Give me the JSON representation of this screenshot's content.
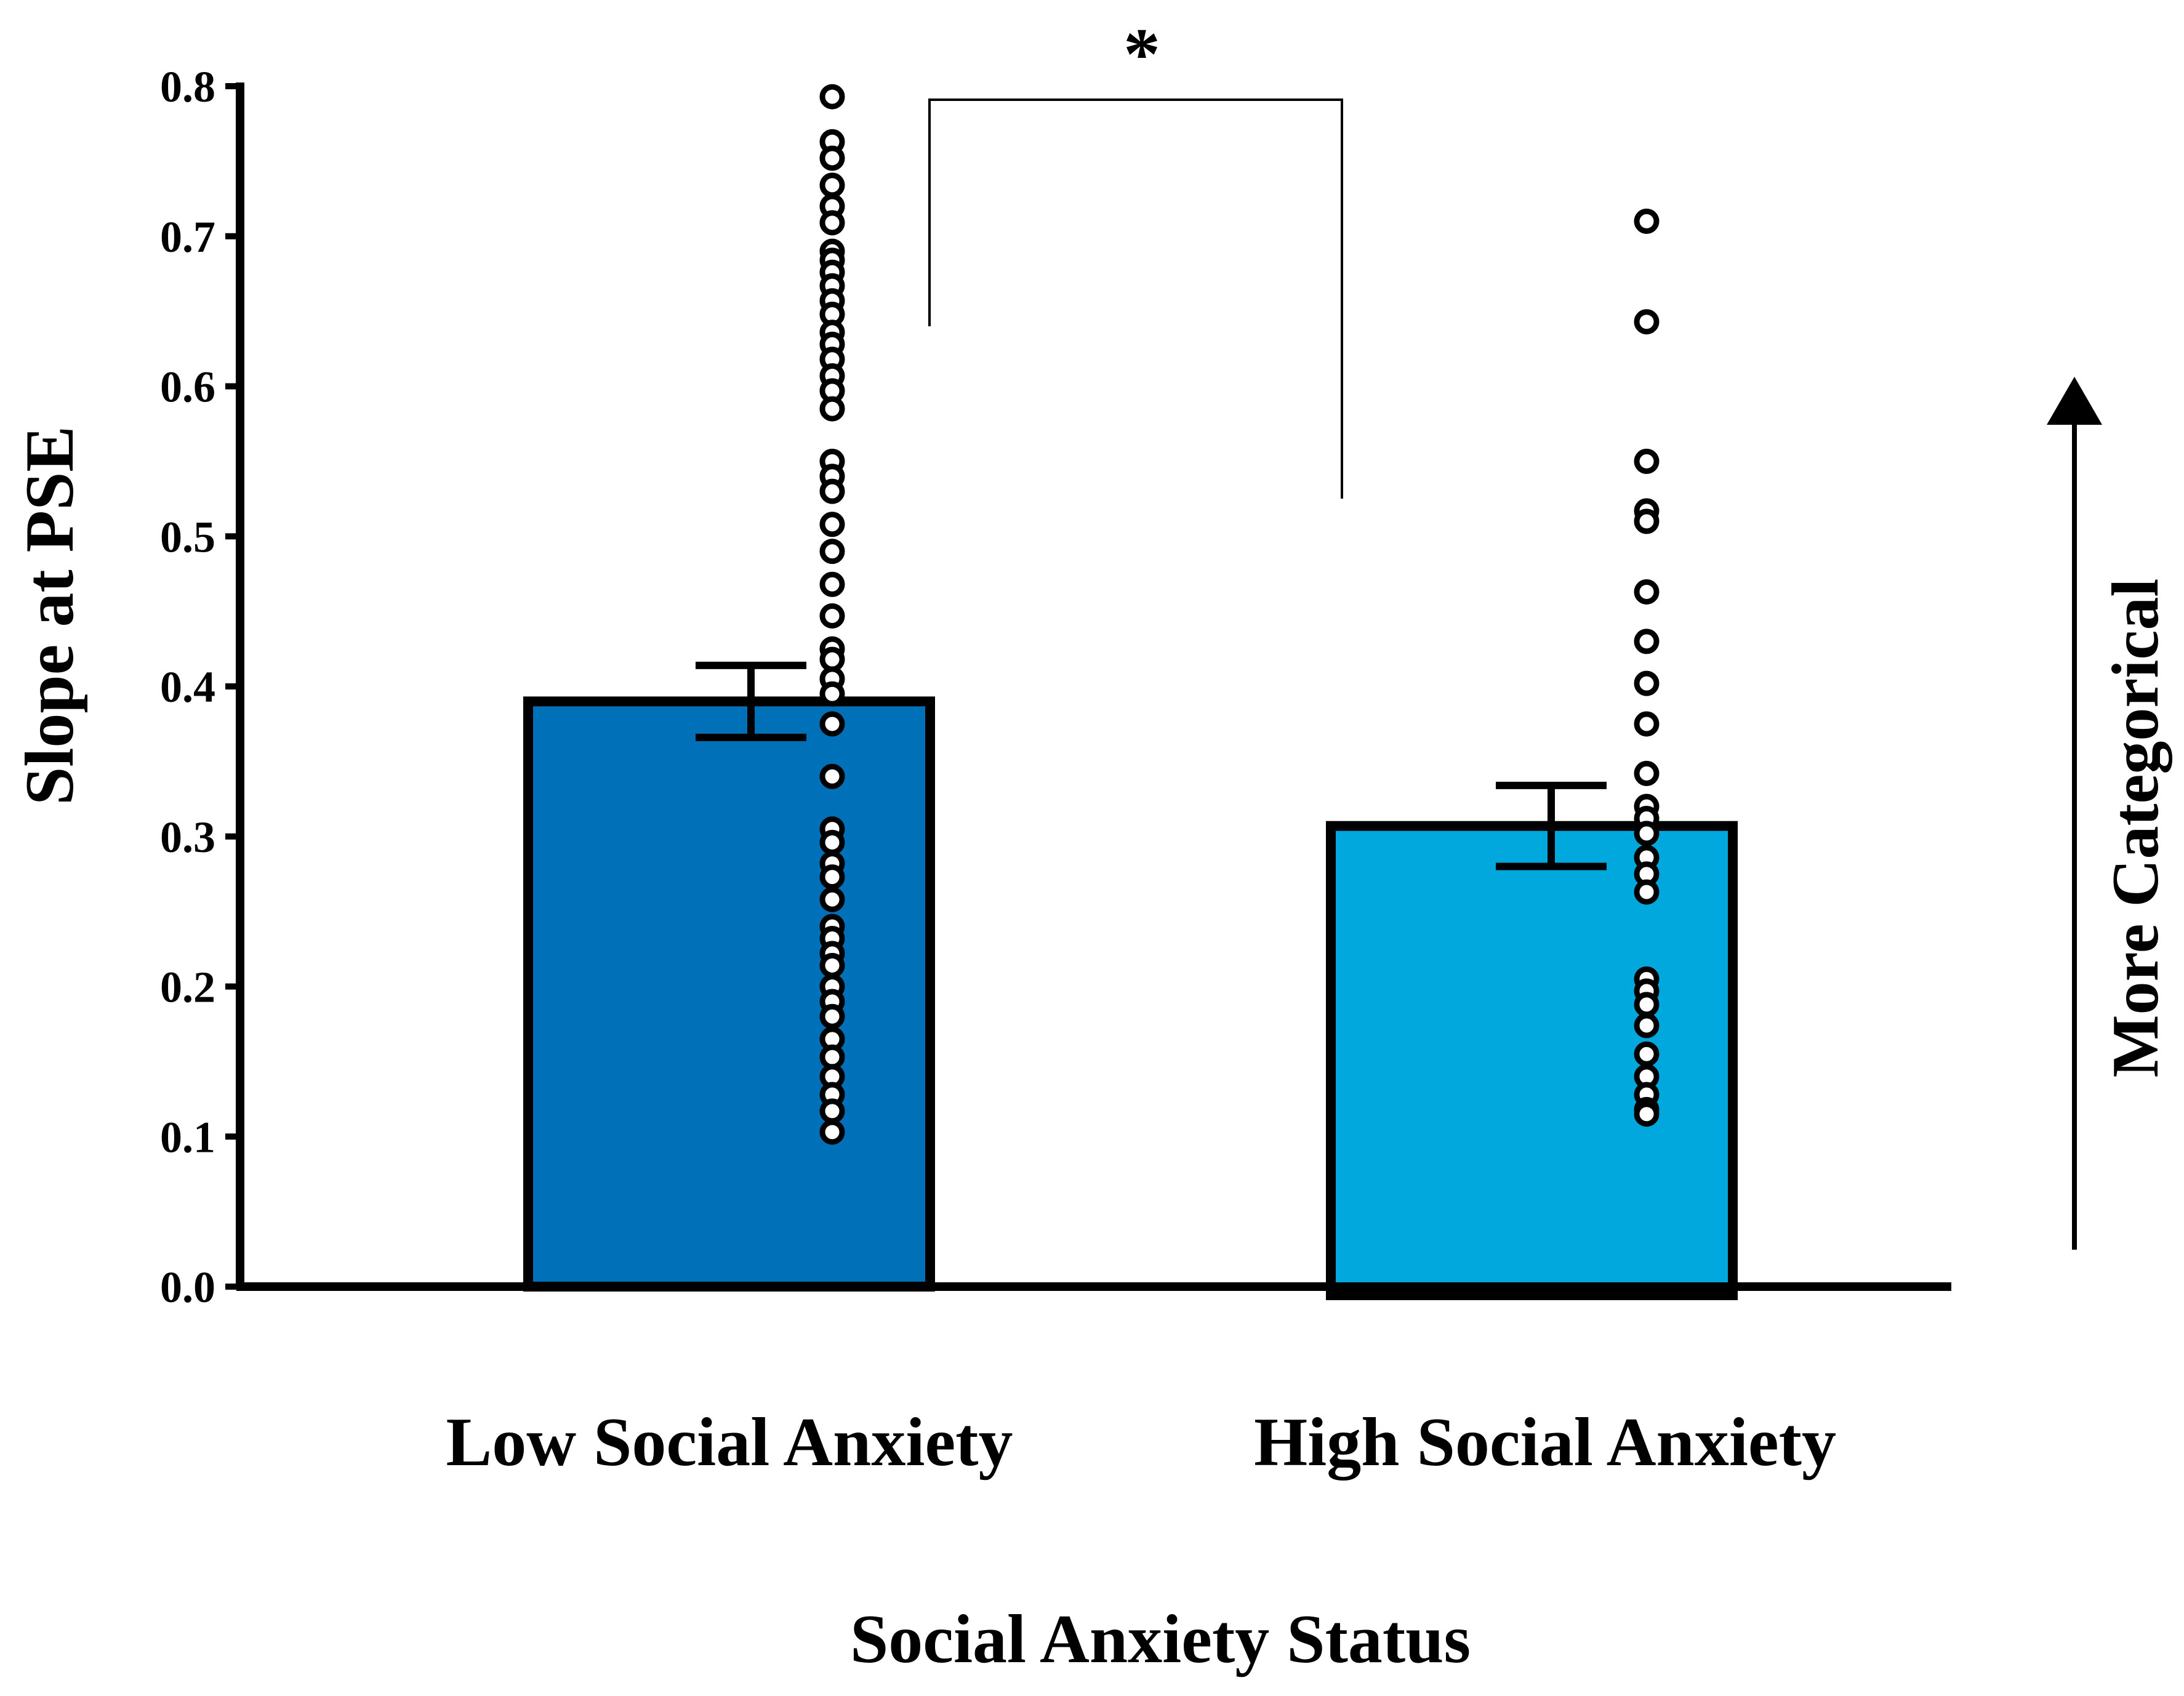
{
  "chart_data": {
    "type": "bar",
    "title": "",
    "xlabel": "Social Anxiety Status",
    "ylabel": "Slope at PSE",
    "ylim": [
      0,
      0.8
    ],
    "yticks": [
      "0.0",
      "0.1",
      "0.2",
      "0.3",
      "0.4",
      "0.5",
      "0.6",
      "0.7",
      "0.8"
    ],
    "categories": [
      "Low Social Anxiety",
      "High Social Anxiety"
    ],
    "values": [
      0.39,
      0.307
    ],
    "errors": [
      0.024,
      0.027
    ],
    "colors": [
      "#0070b8",
      "#00a8de"
    ],
    "points": [
      [
        0.793,
        0.763,
        0.752,
        0.734,
        0.72,
        0.709,
        0.69,
        0.684,
        0.676,
        0.667,
        0.657,
        0.648,
        0.636,
        0.628,
        0.618,
        0.607,
        0.597,
        0.585,
        0.55,
        0.54,
        0.53,
        0.508,
        0.49,
        0.468,
        0.447,
        0.425,
        0.418,
        0.405,
        0.395,
        0.375,
        0.34,
        0.305,
        0.296,
        0.282,
        0.273,
        0.258,
        0.24,
        0.232,
        0.222,
        0.214,
        0.2,
        0.19,
        0.18,
        0.165,
        0.153,
        0.14,
        0.128,
        0.117,
        0.103
      ],
      [
        0.71,
        0.643,
        0.55,
        0.517,
        0.51,
        0.463,
        0.43,
        0.402,
        0.375,
        0.342,
        0.32,
        0.312,
        0.302,
        0.286,
        0.275,
        0.263,
        0.205,
        0.197,
        0.188,
        0.174,
        0.155,
        0.14,
        0.128,
        0.118,
        0.115
      ]
    ],
    "significance": {
      "label": "*",
      "between": [
        0,
        1
      ]
    },
    "annotation": "More Categorical"
  }
}
